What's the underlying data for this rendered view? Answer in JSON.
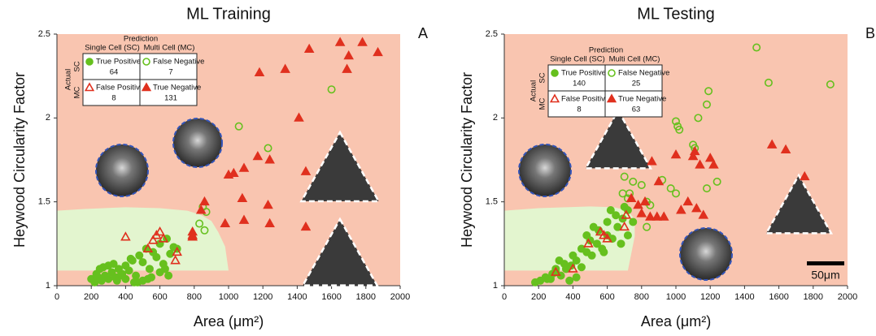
{
  "chart_data": [
    {
      "type": "scatter",
      "title": "ML Training",
      "panel_label": "A",
      "x_label": "Area (μm²)",
      "y_label": "Heywood Circularity Factor",
      "xlim": [
        0,
        2000
      ],
      "ylim": [
        1,
        2.5
      ],
      "xticks": [
        0,
        200,
        400,
        600,
        800,
        1000,
        1200,
        1400,
        1600,
        1800,
        2000
      ],
      "yticks": [
        1,
        1.5,
        2,
        2.5
      ],
      "table": {
        "title": "Prediction",
        "columns": [
          "Single Cell (SC)",
          "Multi Cell (MC)"
        ],
        "row_title": "Actual",
        "rows": [
          "SC",
          "MC"
        ]
      },
      "series": [
        {
          "name": "True Positive",
          "count": 64,
          "color": "#66c01e",
          "marker": "circle",
          "filled": true,
          "x": [
            200,
            220,
            240,
            260,
            280,
            300,
            320,
            340,
            360,
            380,
            400,
            420,
            440,
            460,
            480,
            500,
            520,
            540,
            560,
            580,
            600,
            620,
            640,
            660,
            680,
            250,
            300,
            350,
            400,
            450,
            500,
            550,
            600,
            650,
            700,
            230,
            330,
            430,
            530,
            630,
            270,
            370,
            470
          ],
          "values": [
            1.04,
            1.02,
            1.05,
            1.03,
            1.06,
            1.04,
            1.08,
            1.05,
            1.1,
            1.07,
            1.12,
            1.09,
            1.15,
            1.06,
            1.18,
            1.14,
            1.22,
            1.1,
            1.2,
            1.17,
            1.25,
            1.13,
            1.28,
            1.19,
            1.23,
            1.1,
            1.12,
            1.03,
            1.04,
            1.02,
            1.03,
            1.05,
            1.08,
            1.06,
            1.22,
            1.07,
            1.13,
            1.16,
            1.04,
            1.1,
            1.11,
            1.06,
            1.02
          ]
        },
        {
          "name": "False Negative",
          "count": 7,
          "color": "#66c01e",
          "marker": "circle",
          "filled": false,
          "x": [
            1600,
            1230,
            1060,
            850,
            870,
            830,
            860
          ],
          "values": [
            2.17,
            1.82,
            1.95,
            1.47,
            1.44,
            1.37,
            1.33
          ]
        },
        {
          "name": "False Positive",
          "count": 8,
          "color": "#e0301e",
          "marker": "triangle",
          "filled": false,
          "x": [
            400,
            580,
            600,
            700,
            690,
            560,
            530,
            620
          ],
          "values": [
            1.29,
            1.3,
            1.32,
            1.2,
            1.15,
            1.27,
            1.22,
            1.28
          ]
        },
        {
          "name": "True Negative",
          "count": 131,
          "color": "#e0301e",
          "marker": "triangle",
          "filled": true,
          "x": [
            1470,
            1330,
            1180,
            1650,
            1780,
            1870,
            1700,
            1690,
            1410,
            1170,
            1090,
            1000,
            1030,
            1240,
            1450,
            860,
            840,
            1080,
            1230,
            1240,
            1090,
            980,
            1450,
            790,
            790,
            790
          ],
          "values": [
            2.41,
            2.29,
            2.27,
            2.45,
            2.45,
            2.39,
            2.37,
            2.29,
            2.0,
            1.77,
            1.7,
            1.66,
            1.67,
            1.75,
            1.68,
            1.5,
            1.45,
            1.52,
            1.48,
            1.37,
            1.39,
            1.37,
            1.35,
            1.3,
            1.32,
            1.29
          ]
        }
      ]
    },
    {
      "type": "scatter",
      "title": "ML Testing",
      "panel_label": "B",
      "x_label": "Area (μm²)",
      "y_label": "Heywood Circularity Factor",
      "xlim": [
        0,
        2000
      ],
      "ylim": [
        1,
        2.5
      ],
      "xticks": [
        0,
        200,
        400,
        600,
        800,
        1000,
        1200,
        1400,
        1600,
        1800,
        2000
      ],
      "yticks": [
        1,
        1.5,
        2,
        2.5
      ],
      "scale_bar_label": "50μm",
      "table": {
        "title": "Prediction",
        "columns": [
          "Single Cell (SC)",
          "Multi Cell (MC)"
        ],
        "row_title": "Actual",
        "rows": [
          "SC",
          "MC"
        ]
      },
      "series": [
        {
          "name": "True Positive",
          "count": 140,
          "color": "#66c01e",
          "marker": "circle",
          "filled": true,
          "x": [
            180,
            210,
            240,
            270,
            300,
            330,
            360,
            390,
            420,
            450,
            480,
            510,
            540,
            570,
            600,
            630,
            660,
            690,
            720,
            750,
            250,
            300,
            350,
            400,
            450,
            500,
            550,
            600,
            650,
            700,
            280,
            380,
            480,
            580,
            680,
            320,
            420,
            520,
            620,
            720
          ],
          "values": [
            1.02,
            1.03,
            1.05,
            1.04,
            1.08,
            1.06,
            1.1,
            1.12,
            1.15,
            1.11,
            1.2,
            1.18,
            1.25,
            1.22,
            1.3,
            1.28,
            1.35,
            1.4,
            1.45,
            1.38,
            1.04,
            1.1,
            1.13,
            1.18,
            1.22,
            1.27,
            1.33,
            1.38,
            1.42,
            1.47,
            1.07,
            1.03,
            1.3,
            1.2,
            1.25,
            1.15,
            1.05,
            1.35,
            1.45,
            1.3
          ]
        },
        {
          "name": "False Negative",
          "count": 25,
          "color": "#66c01e",
          "marker": "circle",
          "filled": false,
          "x": [
            1470,
            1540,
            1900,
            1190,
            1180,
            1130,
            1000,
            1010,
            1020,
            1100,
            1110,
            1240,
            1180,
            970,
            1000,
            750,
            800,
            700,
            690,
            720,
            730,
            830,
            850,
            920,
            830
          ],
          "values": [
            2.42,
            2.21,
            2.2,
            2.16,
            2.08,
            2.0,
            1.98,
            1.95,
            1.93,
            1.84,
            1.82,
            1.62,
            1.58,
            1.58,
            1.55,
            1.62,
            1.6,
            1.65,
            1.55,
            1.52,
            1.55,
            1.5,
            1.48,
            1.63,
            1.35
          ]
        },
        {
          "name": "False Positive",
          "count": 8,
          "color": "#e0301e",
          "marker": "triangle",
          "filled": false,
          "x": [
            300,
            400,
            490,
            580,
            600,
            700,
            710,
            560
          ],
          "values": [
            1.08,
            1.1,
            1.25,
            1.3,
            1.28,
            1.35,
            1.42,
            1.32
          ]
        },
        {
          "name": "True Negative",
          "count": 63,
          "color": "#e0301e",
          "marker": "triangle",
          "filled": true,
          "x": [
            1560,
            1640,
            1750,
            1000,
            1100,
            1110,
            1140,
            1200,
            1220,
            860,
            900,
            1070,
            1120,
            1160,
            1030,
            800,
            850,
            890,
            930,
            740,
            780,
            820
          ],
          "values": [
            1.84,
            1.81,
            1.65,
            1.78,
            1.77,
            1.8,
            1.72,
            1.76,
            1.72,
            1.74,
            1.62,
            1.5,
            1.46,
            1.42,
            1.45,
            1.43,
            1.41,
            1.41,
            1.41,
            1.52,
            1.48,
            1.5
          ]
        }
      ]
    }
  ]
}
